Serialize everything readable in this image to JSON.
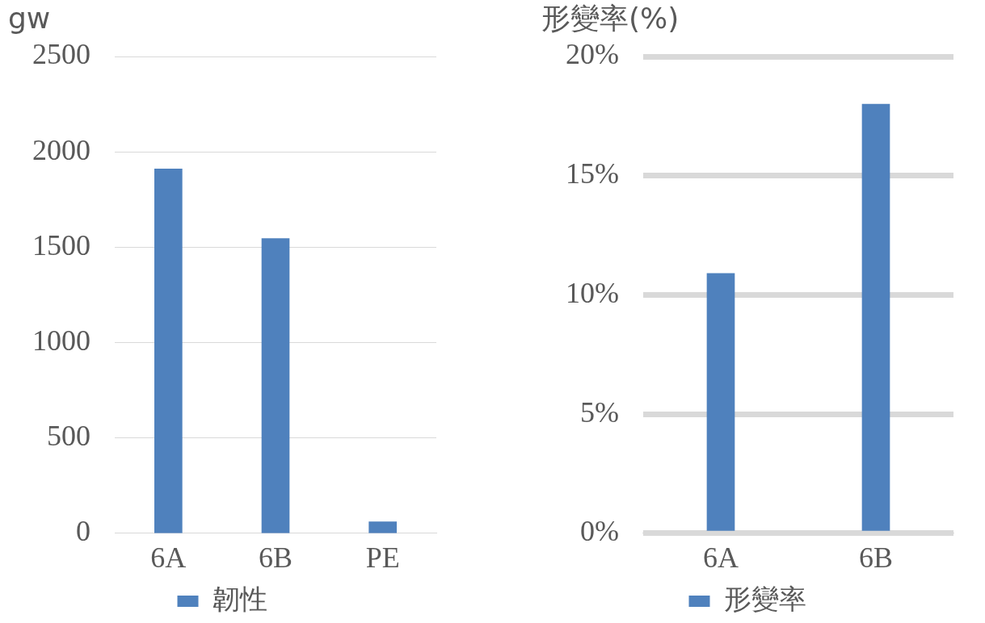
{
  "chart_data": [
    {
      "type": "bar",
      "ylabel": "gw",
      "categories": [
        "6A",
        "6B",
        "PE"
      ],
      "series": [
        {
          "name": "韌性",
          "color": "#4f81bd",
          "values": [
            1910,
            1545,
            60
          ]
        }
      ],
      "ylim": [
        0,
        2500
      ],
      "yticks": [
        0,
        500,
        1000,
        1500,
        2000,
        2500
      ],
      "grid": "y",
      "legend": "bottom"
    },
    {
      "type": "bar",
      "ylabel": "形變率(%)",
      "categories": [
        "6A",
        "6B"
      ],
      "series": [
        {
          "name": "形變率",
          "color": "#4f81bd",
          "values": [
            10.9,
            18
          ]
        }
      ],
      "ylim": [
        0,
        20
      ],
      "yticks": [
        {
          "value": 0,
          "label": "0%"
        },
        {
          "value": 5,
          "label": "5%"
        },
        {
          "value": 10,
          "label": "10%"
        },
        {
          "value": 15,
          "label": "15%"
        },
        {
          "value": 20,
          "label": "20%"
        }
      ],
      "grid": "y",
      "legend": "bottom"
    }
  ]
}
